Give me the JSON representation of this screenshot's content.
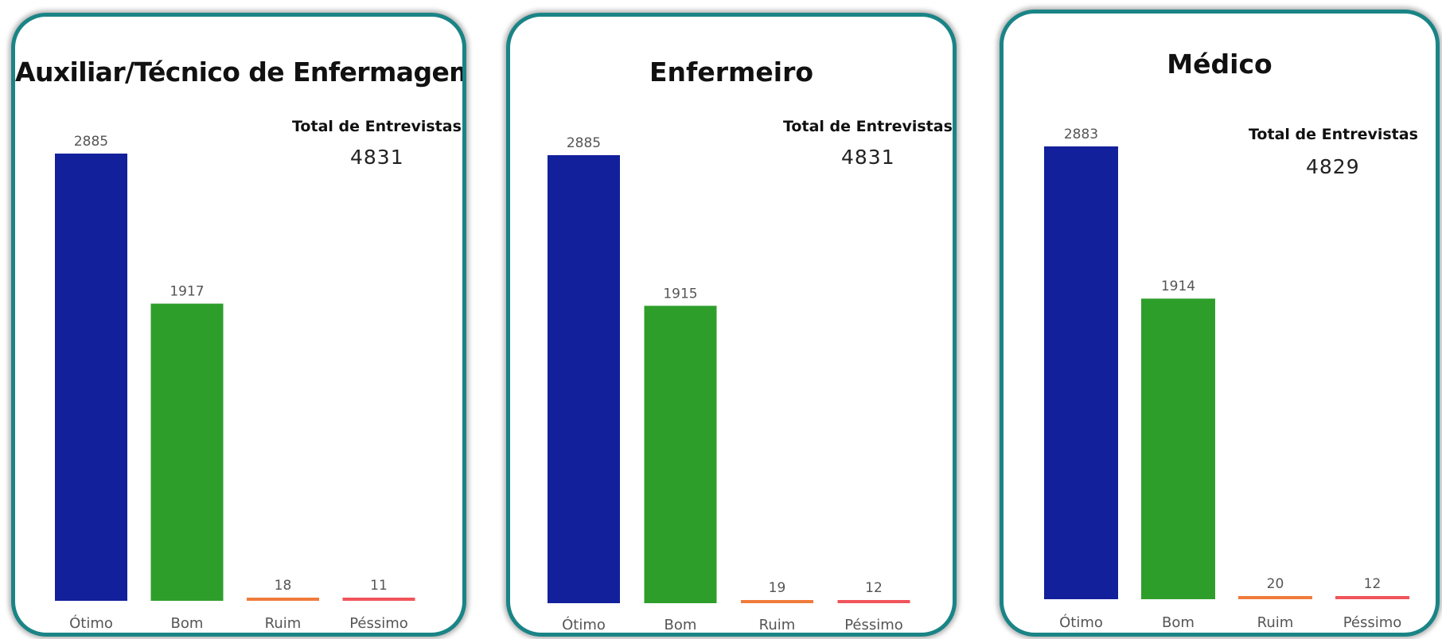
{
  "colors": {
    "panel_border": "#1a8486",
    "Ótimo": "#13209b",
    "Bom": "#2e9e2b",
    "Ruim": "#f07b3b",
    "Péssimo": "#f0545a"
  },
  "chart_data": [
    {
      "type": "bar",
      "title": "Auxiliar/Técnico de Enfermagem",
      "categories": [
        "Ótimo",
        "Bom",
        "Ruim",
        "Péssimo"
      ],
      "values": [
        2885,
        1917,
        18,
        11
      ],
      "total_label": "Total de Entrevistas",
      "total_value": "4831",
      "xlabel": "",
      "ylabel": "",
      "ylim": [
        0,
        2885
      ],
      "grid": false
    },
    {
      "type": "bar",
      "title": "Enfermeiro",
      "categories": [
        "Ótimo",
        "Bom",
        "Ruim",
        "Péssimo"
      ],
      "values": [
        2885,
        1915,
        19,
        12
      ],
      "total_label": "Total de Entrevistas",
      "total_value": "4831",
      "xlabel": "",
      "ylabel": "",
      "ylim": [
        0,
        2885
      ],
      "grid": false
    },
    {
      "type": "bar",
      "title": "Médico",
      "categories": [
        "Ótimo",
        "Bom",
        "Ruim",
        "Péssimo"
      ],
      "values": [
        2883,
        1914,
        20,
        12
      ],
      "total_label": "Total de Entrevistas",
      "total_value": "4829",
      "xlabel": "",
      "ylabel": "",
      "ylim": [
        0,
        2883
      ],
      "grid": false
    }
  ]
}
